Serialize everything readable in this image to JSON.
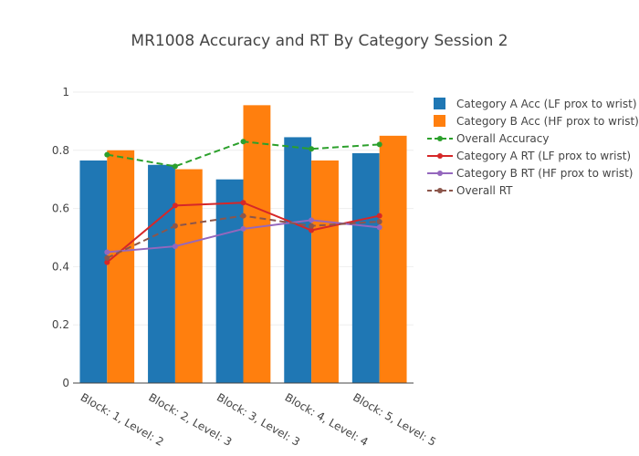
{
  "chart_data": {
    "type": "bar",
    "title": "MR1008 Accuracy and RT By Category Session 2",
    "xlabel": "",
    "ylabel": "",
    "ylim": [
      0,
      1
    ],
    "yticks": [
      "0",
      "0.2",
      "0.4",
      "0.6",
      "0.8",
      "1"
    ],
    "categories": [
      "Block: 1, Level: 2",
      "Block: 2, Level: 3",
      "Block: 3, Level: 3",
      "Block: 4, Level: 4",
      "Block: 5, Level: 5"
    ],
    "grid": true,
    "legend_position": "right",
    "series": [
      {
        "name": "Category A Acc (LF prox to wrist)",
        "kind": "bar",
        "color": "#1f77b4",
        "values": [
          0.765,
          0.75,
          0.7,
          0.845,
          0.79
        ]
      },
      {
        "name": "Category B Acc (HF prox to wrist)",
        "kind": "bar",
        "color": "#ff7f0e",
        "values": [
          0.8,
          0.735,
          0.955,
          0.765,
          0.85
        ]
      },
      {
        "name": "Overall Accuracy",
        "kind": "line",
        "dash": true,
        "color": "#2ca02c",
        "values": [
          0.785,
          0.745,
          0.83,
          0.805,
          0.82
        ]
      },
      {
        "name": "Category A RT (LF prox to wrist)",
        "kind": "line",
        "dash": false,
        "color": "#d62728",
        "values": [
          0.415,
          0.61,
          0.62,
          0.525,
          0.575
        ]
      },
      {
        "name": "Category B RT (HF prox to wrist)",
        "kind": "line",
        "dash": false,
        "color": "#9467bd",
        "values": [
          0.45,
          0.47,
          0.53,
          0.56,
          0.535
        ]
      },
      {
        "name": "Overall RT",
        "kind": "line",
        "dash": true,
        "color": "#8c564b",
        "values": [
          0.43,
          0.54,
          0.575,
          0.54,
          0.555
        ]
      }
    ]
  }
}
